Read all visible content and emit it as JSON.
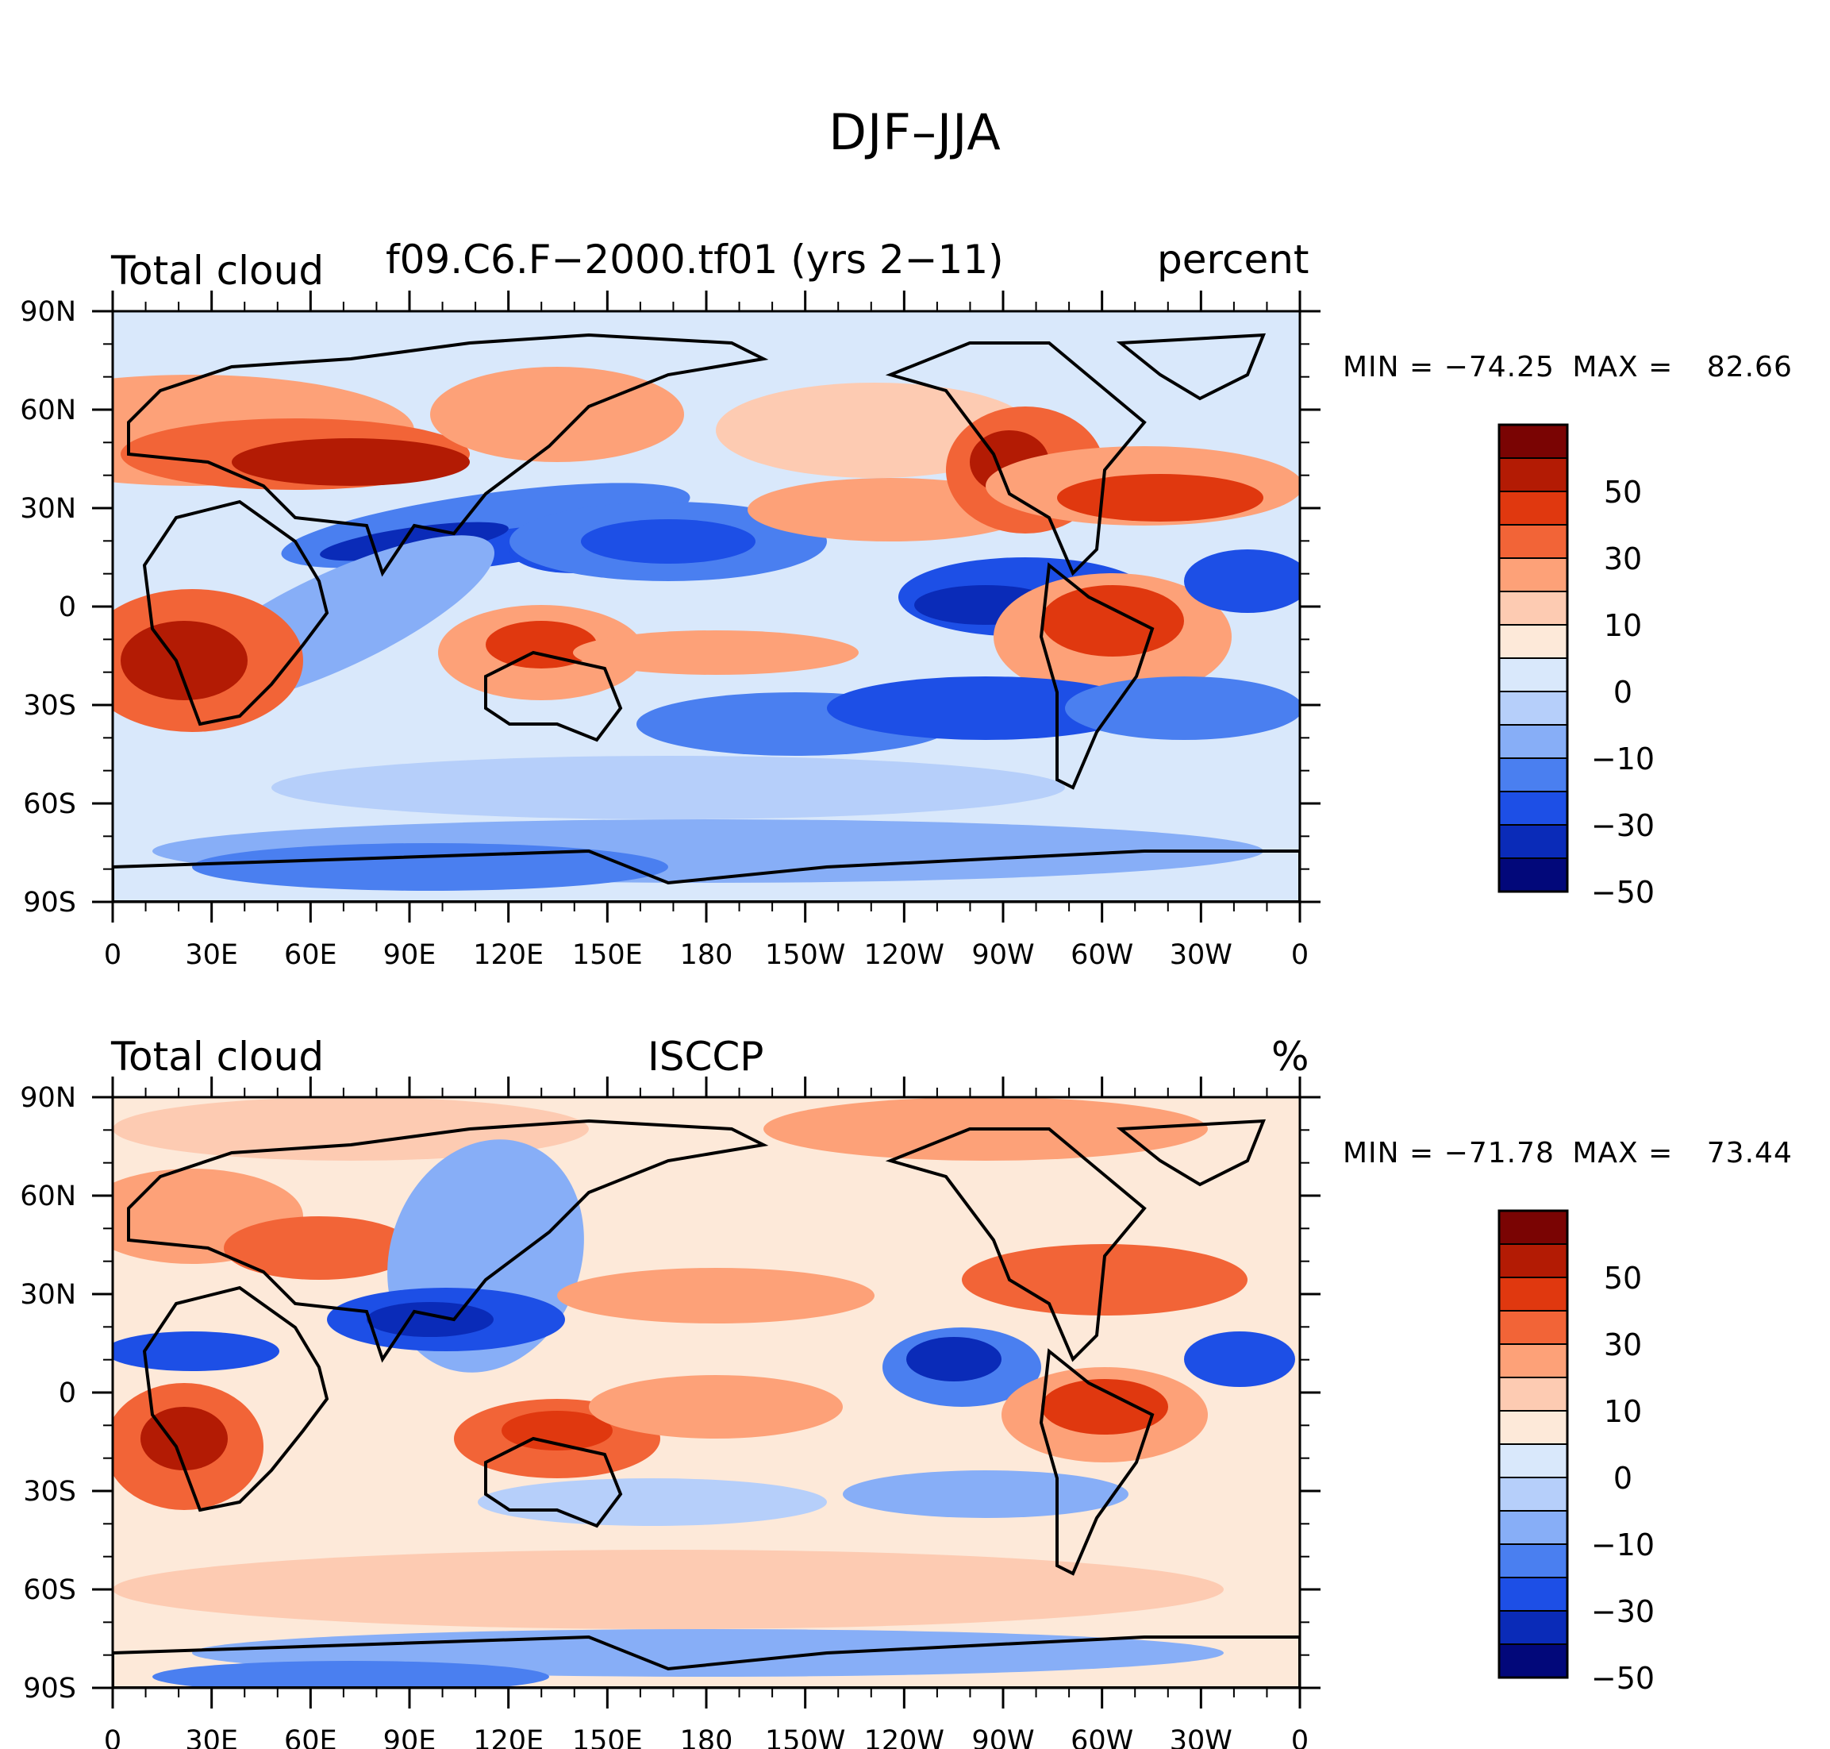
{
  "figure": {
    "title": "DJF–JJA"
  },
  "colorbar": {
    "colors": [
      "#7a0403",
      "#b31b04",
      "#e0380f",
      "#f26437",
      "#fda178",
      "#fdcbb2",
      "#fde9d9",
      "#d9e8fb",
      "#b6cffa",
      "#87aef7",
      "#4a7ff0",
      "#1d4fe6",
      "#0a2bb8",
      "#02087a"
    ],
    "labels": [
      "50",
      "30",
      "10",
      "0",
      "−10",
      "−30",
      "−50"
    ]
  },
  "axes": {
    "lat_labels": [
      "90N",
      "60N",
      "30N",
      "0",
      "30S",
      "60S",
      "90S"
    ],
    "lon_labels": [
      "0",
      "30E",
      "60E",
      "90E",
      "120E",
      "150E",
      "180",
      "150W",
      "120W",
      "90W",
      "60W",
      "30W",
      "0"
    ]
  },
  "panels": [
    {
      "left_title": "Total cloud",
      "center_title": "f09.C6.F−2000.tf01 (yrs 2−11)",
      "right_title": "percent",
      "min_label": "MIN =",
      "min_value": "−74.25",
      "max_label": "MAX =",
      "max_value": "82.66"
    },
    {
      "left_title": "Total cloud",
      "center_title": "ISCCP",
      "right_title": "%",
      "min_label": "MIN =",
      "min_value": "−71.78",
      "max_label": "MAX =",
      "max_value": "73.44"
    }
  ]
}
